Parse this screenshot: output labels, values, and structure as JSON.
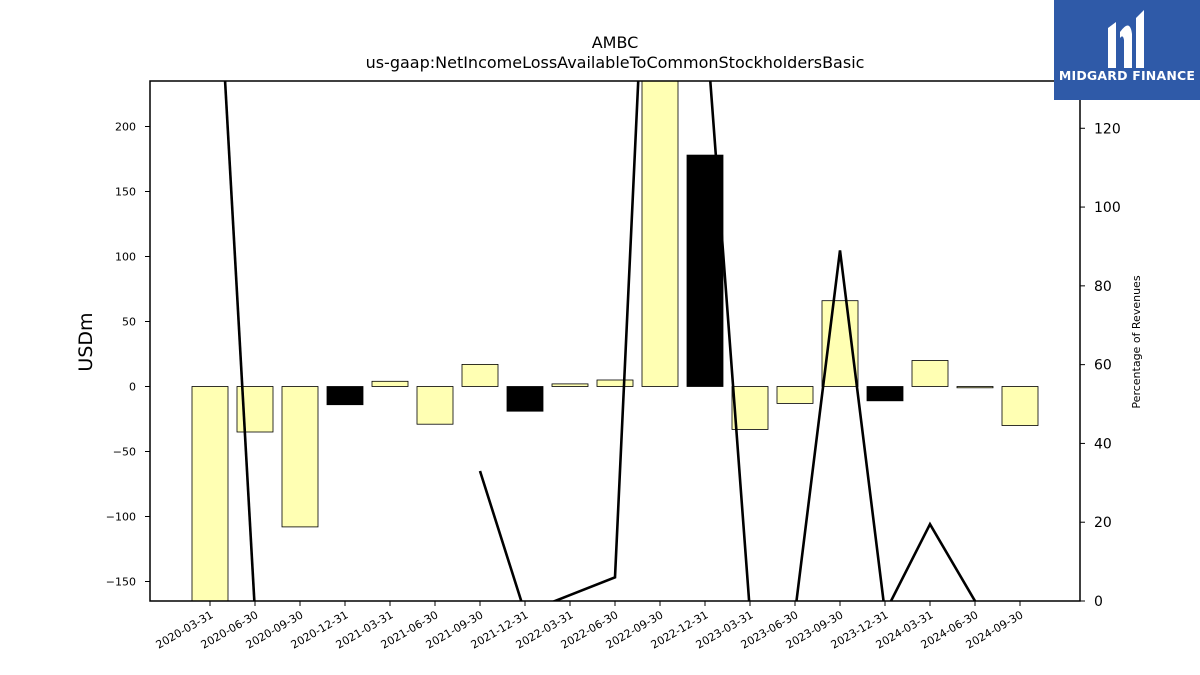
{
  "chart_data": {
    "type": "bar",
    "title": "AMBC",
    "subtitle": "us-gaap:NetIncomeLossAvailableToCommonStockholdersBasic",
    "ylabel": "USDm",
    "y2label": "Percentage of Revenues",
    "ylim": [
      -165,
      235
    ],
    "y2lim": [
      0,
      132
    ],
    "yticks": [
      -150,
      -100,
      -50,
      0,
      50,
      100,
      150,
      200
    ],
    "y2ticks": [
      0,
      20,
      40,
      60,
      80,
      100,
      120
    ],
    "categories": [
      "2020-03-31",
      "2020-06-30",
      "2020-09-30",
      "2020-12-31",
      "2021-03-31",
      "2021-06-30",
      "2021-09-30",
      "2021-12-31",
      "2022-03-31",
      "2022-06-30",
      "2022-09-30",
      "2022-12-31",
      "2023-03-31",
      "2023-06-30",
      "2023-09-30",
      "2023-12-31",
      "2024-03-31",
      "2024-06-30",
      "2024-09-30"
    ],
    "series": [
      {
        "values": [
          -166,
          -35,
          -108,
          -14,
          4,
          -29,
          17,
          -19,
          2,
          5,
          240,
          178,
          -33,
          -13,
          66,
          -11,
          20,
          -1,
          -30
        ],
        "colors": [
          "#ffffb3",
          "#ffffb3",
          "#ffffb3",
          "#000000",
          "#ffffb3",
          "#ffffb3",
          "#ffffb3",
          "#000000",
          "#ffffb3",
          "#ffffb3",
          "#ffffb3",
          "#000000",
          "#ffffb3",
          "#ffffb3",
          "#ffffb3",
          "#000000",
          "#ffffb3",
          "#ffffb3",
          "#ffffb3"
        ]
      },
      {
        "type": "line",
        "axis": "right",
        "values": [
          200,
          -3,
          null,
          null,
          3,
          null,
          33,
          -3,
          1.5,
          6,
          250,
          150,
          -3,
          -3,
          89,
          -3,
          19.5,
          0,
          null
        ]
      }
    ],
    "grid": false,
    "legend": "none"
  },
  "branding": {
    "logo_text": "MIDGARD FINANCE"
  }
}
